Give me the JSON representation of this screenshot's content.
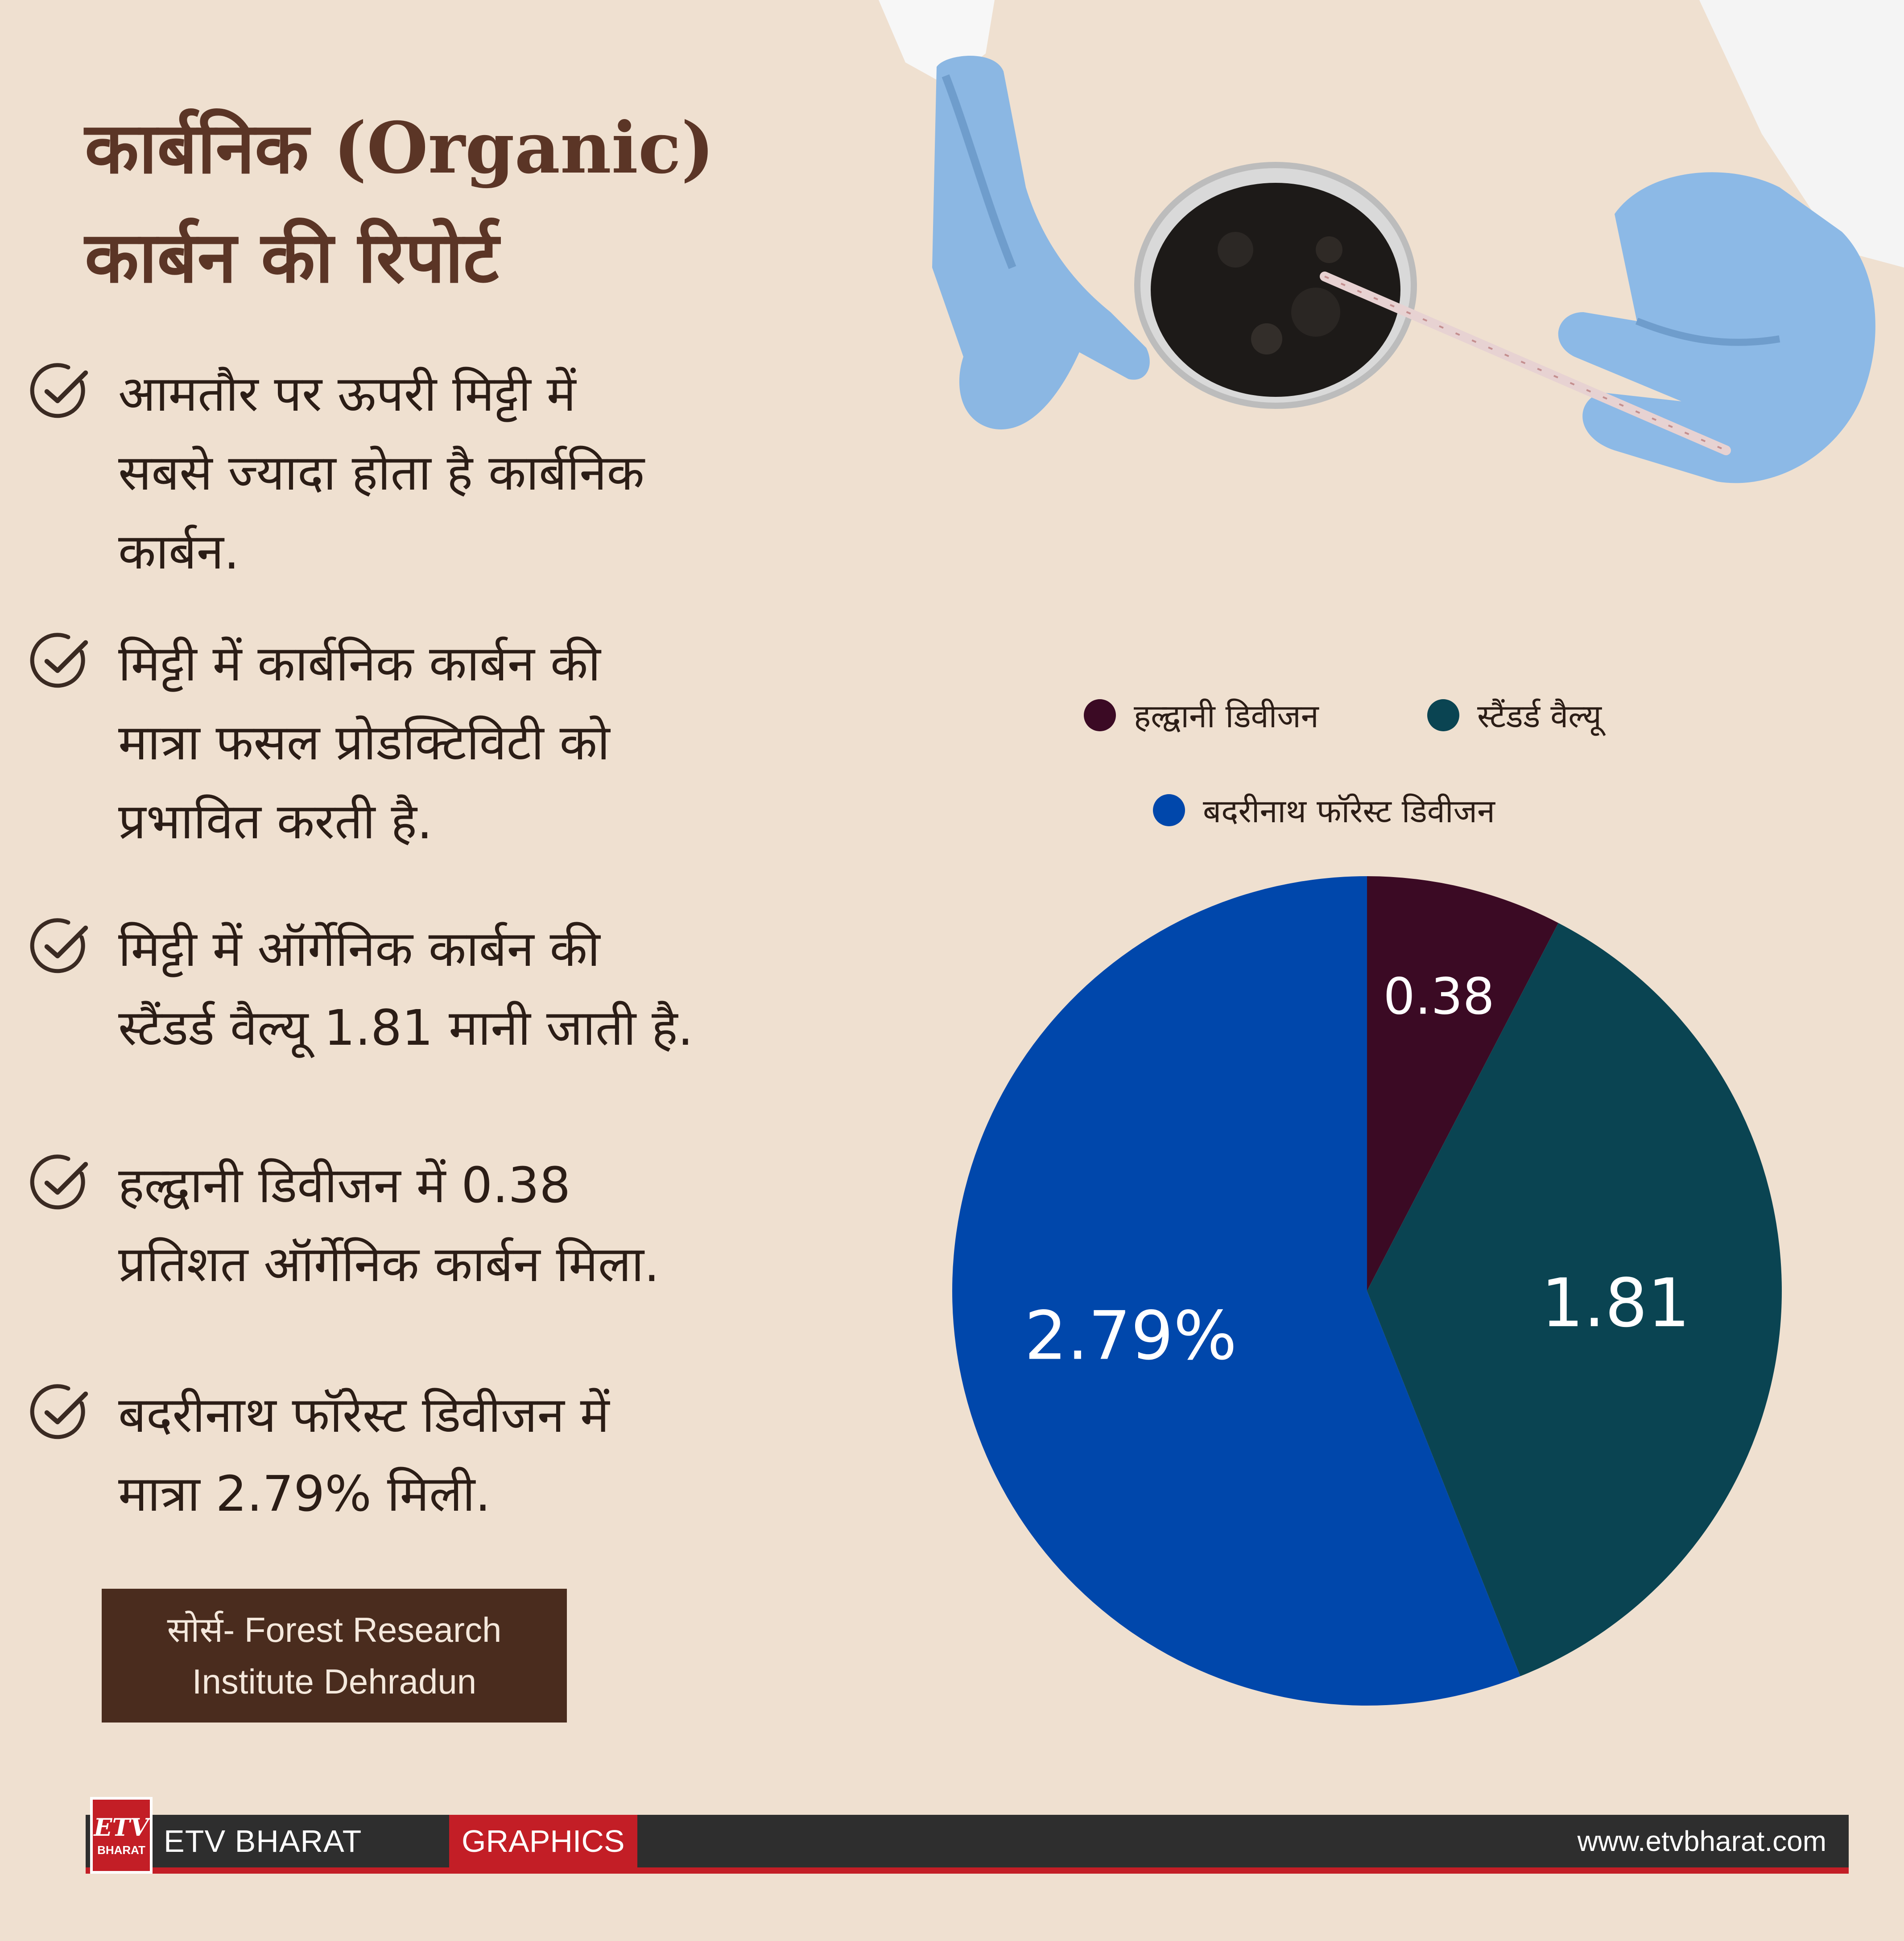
{
  "title": {
    "line1": "कार्बनिक (Organic)",
    "line2": "कार्बन की रिपोर्ट"
  },
  "bullets": [
    {
      "icon": "check-circle-icon",
      "lines": [
        "आमतौर पर ऊपरी मिट्टी में",
        "सबसे ज्यादा होता है कार्बनिक",
        "कार्बन."
      ]
    },
    {
      "icon": "check-circle-icon",
      "lines": [
        "मिट्टी में कार्बनिक कार्बन की",
        "मात्रा फसल प्रोडक्टिविटी को",
        "प्रभावित करती है."
      ]
    },
    {
      "icon": "check-circle-icon",
      "lines": [
        "मिट्टी में ऑर्गेनिक कार्बन की",
        "स्टैंडर्ड वैल्यू 1.81 मानी जाती है."
      ]
    },
    {
      "icon": "check-circle-icon",
      "lines": [
        "हल्द्वानी डिवीजन में 0.38",
        "प्रतिशत ऑर्गेनिक कार्बन मिला."
      ]
    },
    {
      "icon": "check-circle-icon",
      "lines": [
        "बदरीनाथ फॉरेस्ट डिवीजन में",
        "मात्रा 2.79% मिली."
      ]
    }
  ],
  "source": {
    "line1": "सोर्स- Forest Research",
    "line2": "Institute Dehradun"
  },
  "photo": {
    "subject": "gloved-hands-soil-petri-dish"
  },
  "chart_data": {
    "type": "pie",
    "title": "",
    "legend_position": "top",
    "slices": [
      {
        "label": "हल्द्वानी डिवीजन",
        "value": 0.38,
        "display": "0.38",
        "color": "#3b0a24"
      },
      {
        "label": "स्टैंडर्ड वैल्यू",
        "value": 1.81,
        "display": "1.81",
        "color": "#0a4452"
      },
      {
        "label": "बदरीनाथ फॉरेस्ट डिवीजन",
        "value": 2.79,
        "display": "2.79%",
        "color": "#0047ab"
      }
    ]
  },
  "footer": {
    "logo_text": "ETV",
    "logo_sub": "BHARAT",
    "brand": "ETV BHARAT",
    "tag": "GRAPHICS",
    "website": "www.etvbharat.com",
    "accent": "#c31e26",
    "bar_color": "#2e2e2e"
  }
}
